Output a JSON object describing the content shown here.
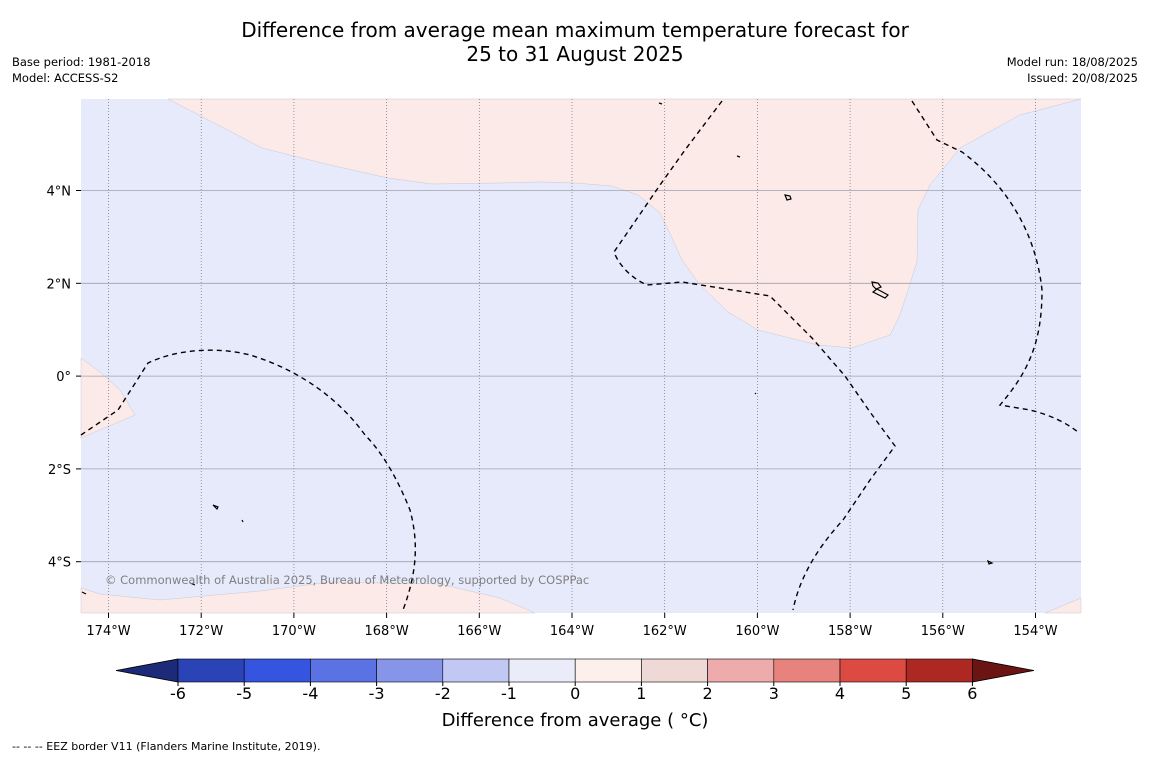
{
  "title_line1": "Difference from average mean maximum temperature forecast for",
  "title_line2": "25 to 31 August 2025",
  "meta_left": [
    "Base period: 1981-2018",
    "Model: ACCESS-S2"
  ],
  "meta_right": [
    "Model run: 18/08/2025",
    "Issued: 20/08/2025"
  ],
  "copyright": "© Commonwealth of Australia 2025, Bureau of Meteorology, supported by COSPPac",
  "lon_labels": [
    "174°W",
    "172°W",
    "170°W",
    "168°W",
    "166°W",
    "164°W",
    "162°W",
    "160°W",
    "158°W",
    "156°W",
    "154°W"
  ],
  "lat_labels": [
    "4°N",
    "2°N",
    "0°",
    "2°S",
    "4°S"
  ],
  "colorbar": {
    "title": "Difference from average ( °C)",
    "ticks": [
      "-6",
      "-5",
      "-4",
      "-3",
      "-2",
      "-1",
      "0",
      "1",
      "2",
      "3",
      "4",
      "5",
      "6"
    ],
    "colors": [
      "#1c2a78",
      "#2a44b8",
      "#3555e0",
      "#5a72e4",
      "#8795e8",
      "#c2c8f4",
      "#eaecfa",
      "#fdefec",
      "#efd9d6",
      "#eeabab",
      "#e8827c",
      "#dd4a42",
      "#ae2823",
      "#6b1414"
    ]
  },
  "map_colors": {
    "below_average": "#e7eafb",
    "above_average": "#fbeae7"
  },
  "footnote": "--  --  -- EEZ border V11 (Flanders Marine Institute, 2019)."
}
